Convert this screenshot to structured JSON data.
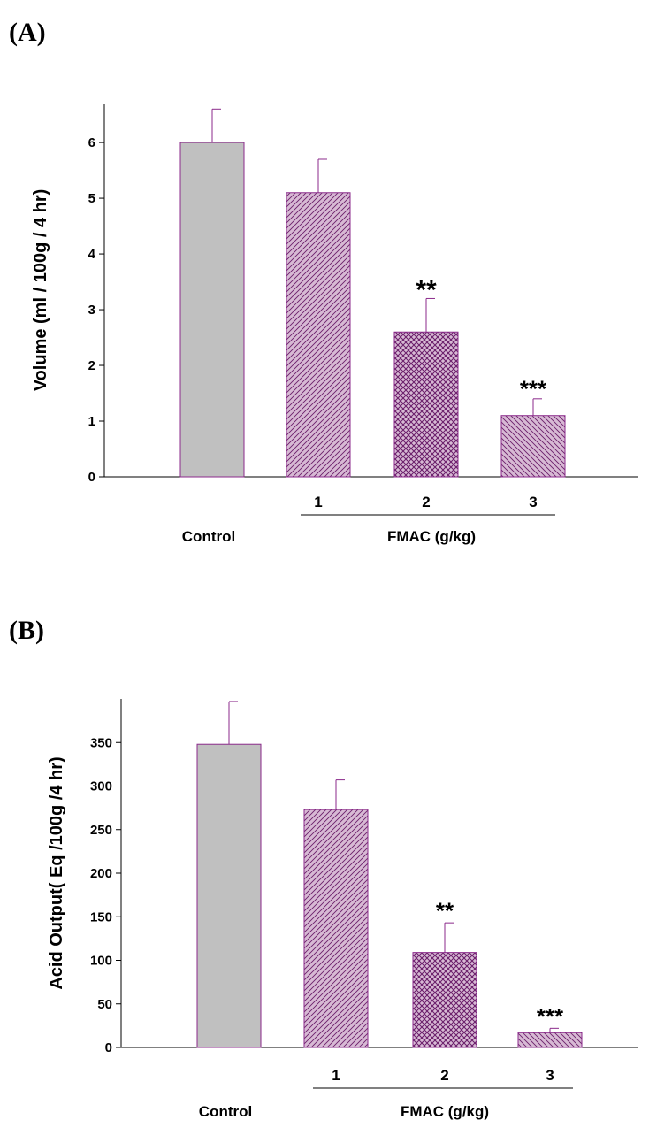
{
  "colors": {
    "control_fill": "#c0c0c0",
    "bar_stroke": "#8b2a8b",
    "hatch_bg": "#d7b9d4",
    "hatch_line": "#6b1f6b",
    "axis": "#000000"
  },
  "chart_data": [
    {
      "type": "bar",
      "panel_label": "(A)",
      "ylabel": "Volume (ml / 100g / 4 hr)",
      "ylim": [
        0,
        6.7
      ],
      "yticks": [
        0,
        1,
        2,
        3,
        4,
        5,
        6
      ],
      "categories": [
        "Control",
        "1",
        "2",
        "3"
      ],
      "values": [
        6.0,
        5.1,
        2.6,
        1.1
      ],
      "errors": [
        0.6,
        0.6,
        0.6,
        0.3
      ],
      "significance": [
        "",
        "",
        "**",
        "***"
      ],
      "patterns": [
        "solid",
        "diag-fwd",
        "crosshatch",
        "diag-back"
      ],
      "group_label": "FMAC (g/kg)",
      "group_range": [
        1,
        3
      ],
      "grid": false
    },
    {
      "type": "bar",
      "panel_label": "(B)",
      "ylabel": "Acid Output( Eq /100g /4 hr)",
      "ylim": [
        0,
        400
      ],
      "yticks": [
        0,
        50,
        100,
        150,
        200,
        250,
        300,
        350
      ],
      "categories": [
        "Control",
        "1",
        "2",
        "3"
      ],
      "values": [
        348,
        273,
        109,
        17
      ],
      "errors": [
        49,
        34,
        34,
        5
      ],
      "significance": [
        "",
        "",
        "**",
        "***"
      ],
      "patterns": [
        "solid",
        "diag-fwd",
        "crosshatch",
        "diag-back"
      ],
      "group_label": "FMAC (g/kg)",
      "group_range": [
        1,
        3
      ],
      "grid": false
    }
  ]
}
